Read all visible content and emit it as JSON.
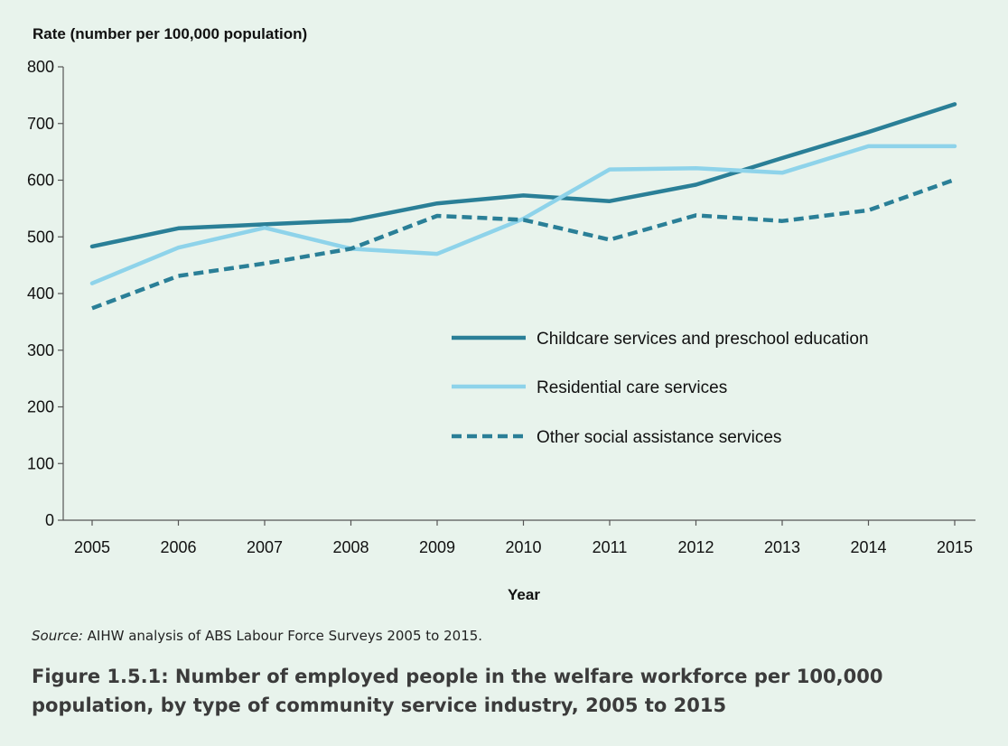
{
  "chart_data": {
    "type": "line",
    "ylabel": "Rate (number per 100,000 population)",
    "xlabel": "Year",
    "ylim": [
      0,
      800
    ],
    "yticks": [
      "0",
      "100",
      "200",
      "300",
      "400",
      "500",
      "600",
      "700",
      "800"
    ],
    "categories": [
      "2005",
      "2006",
      "2007",
      "2008",
      "2009",
      "2010",
      "2011",
      "2012",
      "2013",
      "2014",
      "2015"
    ],
    "grid": false,
    "legend_position": "center-right",
    "series": [
      {
        "name": "Childcare services and preschool education",
        "color": "#2a7f97",
        "style": "solid",
        "values": [
          483,
          515,
          522,
          529,
          559,
          573,
          563,
          592,
          639,
          685,
          734
        ]
      },
      {
        "name": "Residential care services",
        "color": "#8ed3ea",
        "style": "solid",
        "values": [
          418,
          481,
          516,
          479,
          470,
          532,
          619,
          621,
          613,
          660,
          660
        ]
      },
      {
        "name": "Other social assistance services",
        "color": "#2a7f97",
        "style": "dashed",
        "values": [
          374,
          431,
          453,
          479,
          537,
          530,
          495,
          538,
          528,
          547,
          601
        ]
      }
    ]
  },
  "source": {
    "prefix": "Source:",
    "text": " AIHW analysis of ABS Labour Force Surveys 2005 to 2015."
  },
  "caption": "Figure 1.5.1: Number of employed people in the welfare workforce per 100,000 population, by type of community service industry, 2005 to 2015"
}
